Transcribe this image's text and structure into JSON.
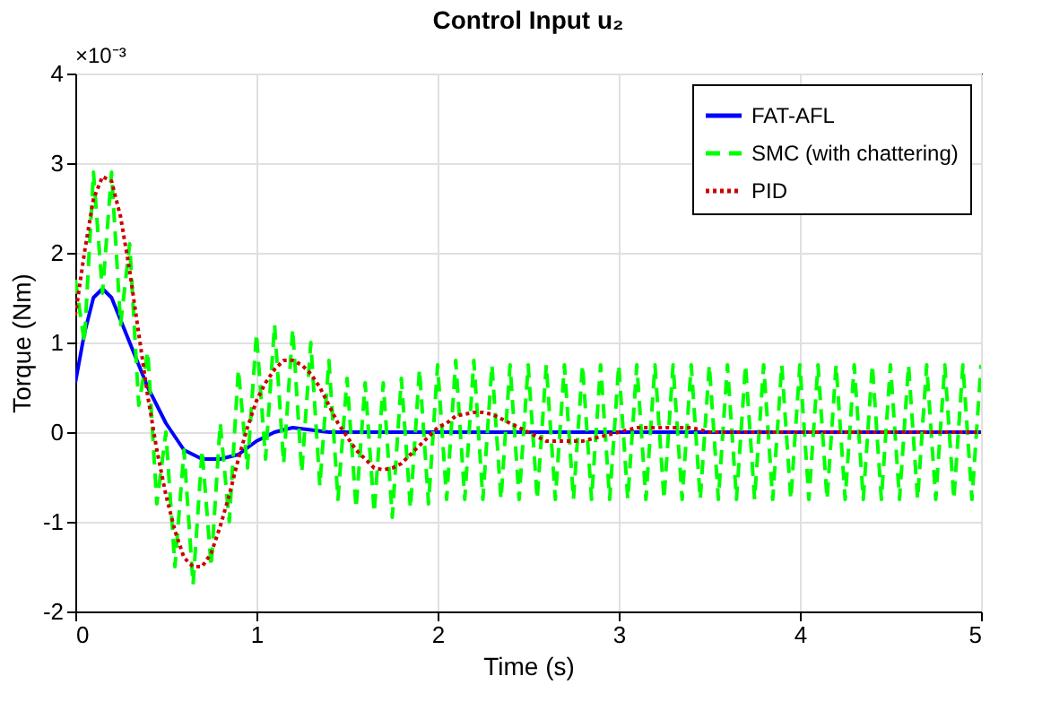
{
  "chart_data": {
    "type": "line",
    "title": "Control Input u₂",
    "xlabel": "Time (s)",
    "ylabel": "Torque (Nm)",
    "annotations": [
      "×10⁻³"
    ],
    "xlim": [
      0,
      5
    ],
    "xticks": [
      0,
      1,
      2,
      3,
      4,
      5
    ],
    "ylim": [
      -2,
      4
    ],
    "yticks": [
      -2,
      -1,
      0,
      1,
      2,
      3,
      4
    ],
    "grid": true,
    "legend": "top right",
    "series": [
      {
        "name": "FAT-AFL",
        "color": "#0000ff",
        "line_style": "solid",
        "x": [
          0,
          0.05,
          0.1,
          0.15,
          0.2,
          0.3,
          0.4,
          0.5,
          0.6,
          0.7,
          0.8,
          0.9,
          1.0,
          1.1,
          1.2,
          1.4,
          1.6,
          2.0,
          3.0,
          4.0,
          5.0
        ],
        "values": [
          0.55,
          1.1,
          1.5,
          1.6,
          1.5,
          1.0,
          0.5,
          0.1,
          -0.2,
          -0.3,
          -0.3,
          -0.25,
          -0.1,
          0,
          0.05,
          0,
          0,
          0,
          0,
          0,
          0
        ]
      },
      {
        "name": "SMC (with chattering)",
        "color": "#00ff00",
        "line_style": "dashed",
        "x": [
          0,
          0.05,
          0.1,
          0.15,
          0.2,
          0.25,
          0.3,
          0.35,
          0.4,
          0.45,
          0.5,
          0.55,
          0.6,
          0.65,
          0.7,
          0.75,
          0.8,
          0.85,
          0.9,
          0.95,
          1.0,
          1.05,
          1.1,
          1.15,
          1.2,
          1.25,
          1.3,
          1.35,
          1.4,
          1.45,
          1.5,
          1.55,
          1.6,
          1.65,
          1.7,
          1.75,
          1.8,
          1.85,
          1.9,
          1.95,
          2.0,
          2.05,
          2.1,
          2.15,
          2.2,
          2.25,
          2.3,
          2.35,
          2.4,
          2.45,
          2.5,
          2.55,
          2.6,
          2.65,
          2.7,
          2.75,
          2.8,
          2.85,
          2.9,
          2.95,
          3.0,
          3.05,
          3.1,
          3.15,
          3.2,
          3.25,
          3.3,
          3.35,
          3.4,
          3.45,
          3.5,
          3.55,
          3.6,
          3.65,
          3.7,
          3.75,
          3.8,
          3.85,
          3.9,
          3.95,
          4.0,
          4.05,
          4.1,
          4.15,
          4.2,
          4.25,
          4.3,
          4.35,
          4.4,
          4.45,
          4.5,
          4.55,
          4.6,
          4.65,
          4.7,
          4.75,
          4.8,
          4.85,
          4.9,
          4.95,
          5.0
        ],
        "values": [
          1.7,
          1.0,
          2.9,
          1.55,
          2.9,
          1.2,
          2.1,
          0.3,
          0.9,
          -0.8,
          0,
          -1.5,
          -0.2,
          -1.7,
          -0.2,
          -1.5,
          0.1,
          -1.0,
          0.7,
          -0.4,
          1.1,
          -0.3,
          1.2,
          -0.35,
          1.15,
          -0.45,
          1.0,
          -0.6,
          0.8,
          -0.75,
          0.6,
          -0.85,
          0.55,
          -0.9,
          0.55,
          -0.95,
          0.6,
          -0.85,
          0.7,
          -0.8,
          0.75,
          -0.75,
          0.8,
          -0.75,
          0.8,
          -0.75,
          0.75,
          -0.75,
          0.75,
          -0.75,
          0.75,
          -0.75,
          0.75,
          -0.75,
          0.75,
          -0.75,
          0.75,
          -0.75,
          0.75,
          -0.75,
          0.75,
          -0.75,
          0.75,
          -0.75,
          0.75,
          -0.75,
          0.75,
          -0.75,
          0.75,
          -0.75,
          0.75,
          -0.75,
          0.75,
          -0.75,
          0.75,
          -0.75,
          0.75,
          -0.75,
          0.75,
          -0.75,
          0.75,
          -0.75,
          0.75,
          -0.75,
          0.75,
          -0.75,
          0.75,
          -0.75,
          0.75,
          -0.75,
          0.75,
          -0.75,
          0.75,
          -0.75,
          0.75,
          -0.75,
          0.75,
          -0.75,
          0.75,
          -0.75,
          0.75
        ]
      },
      {
        "name": "PID",
        "color": "#cc0000",
        "line_style": "dotted",
        "x": [
          0,
          0.05,
          0.1,
          0.15,
          0.2,
          0.25,
          0.3,
          0.35,
          0.4,
          0.45,
          0.5,
          0.55,
          0.6,
          0.65,
          0.7,
          0.75,
          0.8,
          0.85,
          0.9,
          0.95,
          1.0,
          1.05,
          1.1,
          1.15,
          1.2,
          1.25,
          1.3,
          1.35,
          1.4,
          1.45,
          1.5,
          1.55,
          1.6,
          1.65,
          1.7,
          1.75,
          1.8,
          1.85,
          1.9,
          1.95,
          2.0,
          2.05,
          2.1,
          2.15,
          2.2,
          2.25,
          2.3,
          2.35,
          2.4,
          2.45,
          2.5,
          2.6,
          2.7,
          2.8,
          2.9,
          3.0,
          3.1,
          3.2,
          3.3,
          3.4,
          3.5,
          3.7,
          4.0,
          4.3,
          4.6,
          5.0
        ],
        "values": [
          1.3,
          2.0,
          2.6,
          2.85,
          2.8,
          2.4,
          1.8,
          1.1,
          0.4,
          -0.2,
          -0.7,
          -1.1,
          -1.4,
          -1.5,
          -1.5,
          -1.35,
          -1.05,
          -0.7,
          -0.3,
          0.05,
          0.35,
          0.55,
          0.7,
          0.8,
          0.8,
          0.75,
          0.65,
          0.5,
          0.3,
          0.1,
          -0.05,
          -0.2,
          -0.3,
          -0.4,
          -0.42,
          -0.4,
          -0.35,
          -0.25,
          -0.15,
          -0.05,
          0.05,
          0.1,
          0.18,
          0.2,
          0.22,
          0.22,
          0.2,
          0.15,
          0.1,
          0.05,
          0,
          -0.1,
          -0.1,
          -0.1,
          -0.05,
          0,
          0.05,
          0.05,
          0.05,
          0.05,
          0,
          0,
          0,
          0,
          0,
          0
        ]
      }
    ]
  }
}
